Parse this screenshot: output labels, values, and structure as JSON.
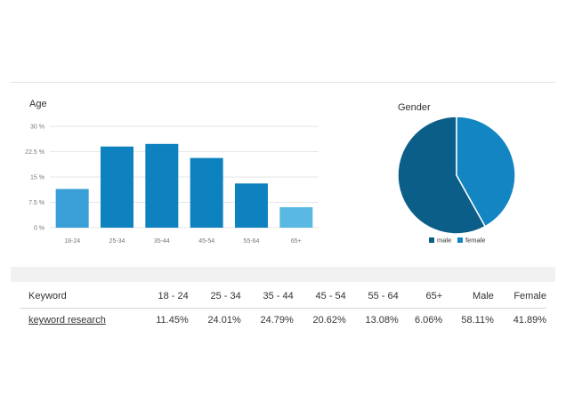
{
  "age_card": {
    "title": "Age"
  },
  "gender_card": {
    "title": "Gender"
  },
  "chart_data": [
    {
      "type": "bar",
      "title": "Age",
      "categories": [
        "18-24",
        "25-34",
        "35-44",
        "45-54",
        "55-64",
        "65+"
      ],
      "values": [
        11.45,
        24.01,
        24.79,
        20.62,
        13.08,
        6.06
      ],
      "ylim": [
        0,
        30
      ],
      "yticks": [
        "0 %",
        "7.5 %",
        "15 %",
        "22.5 %",
        "30 %"
      ],
      "ytick_values": [
        0,
        7.5,
        15,
        22.5,
        30
      ],
      "grid": true,
      "colors": [
        "#3a9fd6",
        "#0e82bf",
        "#0e82bf",
        "#0e82bf",
        "#0e82bf",
        "#5ab9e3"
      ]
    },
    {
      "type": "pie",
      "title": "Gender",
      "labels": [
        "male",
        "female"
      ],
      "values": [
        58.11,
        41.89
      ],
      "colors": [
        "#0b5e87",
        "#1385c3"
      ],
      "legend": "bottom"
    }
  ],
  "table": {
    "headers": [
      "Keyword",
      "18 - 24",
      "25 - 34",
      "35 - 44",
      "45 - 54",
      "55 - 64",
      "65+",
      "Male",
      "Female"
    ],
    "rows": [
      [
        "keyword research",
        "11.45%",
        "24.01%",
        "24.79%",
        "20.62%",
        "13.08%",
        "6.06%",
        "58.11%",
        "41.89%"
      ]
    ]
  }
}
